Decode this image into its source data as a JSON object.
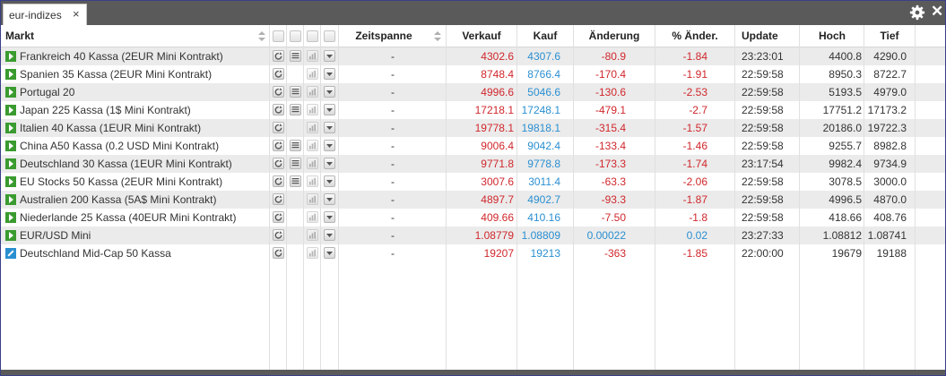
{
  "tab": {
    "label": "eur-indizes",
    "close_symbol": "×"
  },
  "window": {
    "close_symbol": "✕"
  },
  "columns": {
    "markt": "Markt",
    "zeitspanne": "Zeitspanne",
    "verkauf": "Verkauf",
    "kauf": "Kauf",
    "aenderung": "Änderung",
    "pct": "% Änder.",
    "update": "Update",
    "hoch": "Hoch",
    "tief": "Tief"
  },
  "colors": {
    "negative": "#d0272c",
    "positive": "#2a8fd1",
    "play": "#3a9b2f",
    "tabbar": "#5a5a5a"
  },
  "rows": [
    {
      "markt": "Frankreich 40 Kassa (2EUR Mini Kontrakt)",
      "zeitspanne": "-",
      "verkauf": "4302.6",
      "kauf": "4307.6",
      "aenderung": "-80.9",
      "pct": "-1.84",
      "update": "23:23:01",
      "hoch": "4400.8",
      "tief": "4290.0",
      "dir": "neg",
      "icon": "play",
      "news": true
    },
    {
      "markt": "Spanien 35 Kassa (2EUR Mini Kontrakt)",
      "zeitspanne": "-",
      "verkauf": "8748.4",
      "kauf": "8766.4",
      "aenderung": "-170.4",
      "pct": "-1.91",
      "update": "22:59:58",
      "hoch": "8950.3",
      "tief": "8722.7",
      "dir": "neg",
      "icon": "play",
      "news": false
    },
    {
      "markt": "Portugal 20",
      "zeitspanne": "-",
      "verkauf": "4996.6",
      "kauf": "5046.6",
      "aenderung": "-130.6",
      "pct": "-2.53",
      "update": "22:59:58",
      "hoch": "5193.5",
      "tief": "4979.0",
      "dir": "neg",
      "icon": "play",
      "news": true
    },
    {
      "markt": "Japan 225 Kassa (1$ Mini Kontrakt)",
      "zeitspanne": "-",
      "verkauf": "17218.1",
      "kauf": "17248.1",
      "aenderung": "-479.1",
      "pct": "-2.7",
      "update": "22:59:58",
      "hoch": "17751.2",
      "tief": "17173.2",
      "dir": "neg",
      "icon": "play",
      "news": true
    },
    {
      "markt": "Italien 40 Kassa (1EUR Mini Kontrakt)",
      "zeitspanne": "-",
      "verkauf": "19778.1",
      "kauf": "19818.1",
      "aenderung": "-315.4",
      "pct": "-1.57",
      "update": "22:59:58",
      "hoch": "20186.0",
      "tief": "19722.3",
      "dir": "neg",
      "icon": "play",
      "news": false
    },
    {
      "markt": "China A50 Kassa (0.2 USD Mini Kontrakt)",
      "zeitspanne": "-",
      "verkauf": "9006.4",
      "kauf": "9042.4",
      "aenderung": "-133.4",
      "pct": "-1.46",
      "update": "22:59:58",
      "hoch": "9255.7",
      "tief": "8982.8",
      "dir": "neg",
      "icon": "play",
      "news": true
    },
    {
      "markt": "Deutschland 30 Kassa (1EUR Mini Kontrakt)",
      "zeitspanne": "-",
      "verkauf": "9771.8",
      "kauf": "9778.8",
      "aenderung": "-173.3",
      "pct": "-1.74",
      "update": "23:17:54",
      "hoch": "9982.4",
      "tief": "9734.9",
      "dir": "neg",
      "icon": "play",
      "news": true
    },
    {
      "markt": "EU Stocks 50 Kassa (2EUR Mini Kontrakt)",
      "zeitspanne": "-",
      "verkauf": "3007.6",
      "kauf": "3011.4",
      "aenderung": "-63.3",
      "pct": "-2.06",
      "update": "22:59:58",
      "hoch": "3078.5",
      "tief": "3000.0",
      "dir": "neg",
      "icon": "play",
      "news": true
    },
    {
      "markt": "Australien 200 Kassa (5A$ Mini Kontrakt)",
      "zeitspanne": "-",
      "verkauf": "4897.7",
      "kauf": "4902.7",
      "aenderung": "-93.3",
      "pct": "-1.87",
      "update": "22:59:58",
      "hoch": "4996.5",
      "tief": "4870.0",
      "dir": "neg",
      "icon": "play",
      "news": false
    },
    {
      "markt": "Niederlande 25 Kassa (40EUR Mini Kontrakt)",
      "zeitspanne": "-",
      "verkauf": "409.66",
      "kauf": "410.16",
      "aenderung": "-7.50",
      "pct": "-1.8",
      "update": "22:59:58",
      "hoch": "418.66",
      "tief": "408.76",
      "dir": "neg",
      "icon": "play",
      "news": false
    },
    {
      "markt": "EUR/USD Mini",
      "zeitspanne": "-",
      "verkauf": "1.08779",
      "kauf": "1.08809",
      "aenderung": "0.00022",
      "pct": "0.02",
      "update": "23:27:33",
      "hoch": "1.08812",
      "tief": "1.08741",
      "dir": "pos",
      "icon": "play",
      "news": false
    },
    {
      "markt": "Deutschland Mid-Cap 50 Kassa",
      "zeitspanne": "-",
      "verkauf": "19207",
      "kauf": "19213",
      "aenderung": "-363",
      "pct": "-1.85",
      "update": "22:00:00",
      "hoch": "19679",
      "tief": "19188",
      "dir": "neg",
      "icon": "pencil",
      "news": false
    }
  ]
}
